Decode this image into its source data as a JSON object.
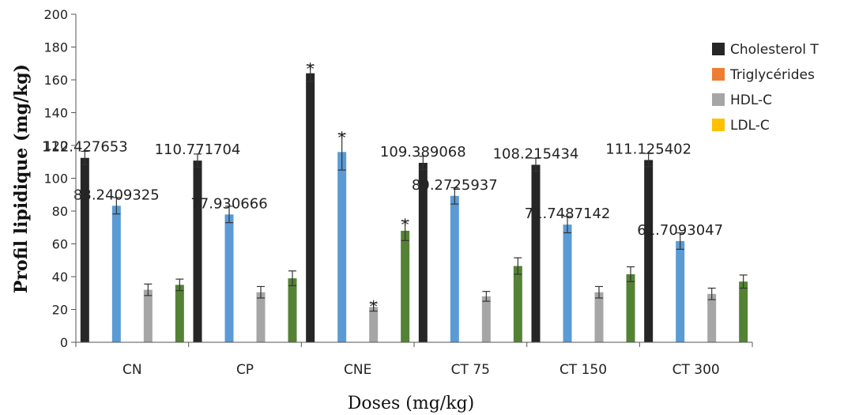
{
  "chart_data": {
    "type": "bar",
    "xlabel": "Doses (mg/kg)",
    "ylabel": "Profil lipidique (mg/kg)",
    "ylim": [
      0,
      200
    ],
    "yticks": [
      0,
      20,
      40,
      60,
      80,
      100,
      120,
      140,
      160,
      180,
      200
    ],
    "legend_position": "right",
    "categories": [
      "CN",
      "CP",
      "CNE",
      "CT 75",
      "CT 150",
      "CT 300"
    ],
    "series": [
      {
        "name": "Cholesterol T",
        "color": "#262626",
        "values": [
          112.427653,
          110.771704,
          164,
          109.389068,
          108.215434,
          111.125402
        ],
        "errors": [
          4,
          4,
          5,
          4,
          4,
          4
        ]
      },
      {
        "name": "Triglycérides",
        "color": "#5b9bd5",
        "values": [
          83.2409325,
          77.930666,
          116,
          89.2725937,
          71.7487142,
          61.7093047
        ],
        "errors": [
          5,
          5,
          11,
          5,
          5,
          5
        ]
      },
      {
        "name": "HDL-C",
        "color": "#a6a6a6",
        "values": [
          32,
          30.5,
          21.5,
          28,
          30.5,
          29.5
        ],
        "errors": [
          3.5,
          3.5,
          2.5,
          3,
          3.5,
          3.5
        ]
      },
      {
        "name": "LDL-C",
        "color": "#548235",
        "values": [
          35,
          39,
          68,
          46.5,
          41.5,
          37
        ],
        "errors": [
          3.5,
          4.5,
          6,
          5,
          4.5,
          4
        ]
      }
    ],
    "data_labels": [
      {
        "category": 0,
        "series": 0,
        "text": "112.427653"
      },
      {
        "category": 0,
        "series": 1,
        "text": "83.2409325"
      },
      {
        "category": 1,
        "series": 0,
        "text": "110.771704"
      },
      {
        "category": 1,
        "series": 1,
        "text": "77.930666"
      },
      {
        "category": 3,
        "series": 0,
        "text": "109.389068"
      },
      {
        "category": 3,
        "series": 1,
        "text": "89.2725937"
      },
      {
        "category": 4,
        "series": 0,
        "text": "108.215434"
      },
      {
        "category": 4,
        "series": 1,
        "text": "71.7487142"
      },
      {
        "category": 5,
        "series": 0,
        "text": "111.125402"
      },
      {
        "category": 5,
        "series": 1,
        "text": "61.7093047"
      }
    ],
    "significance": [
      {
        "category": 2,
        "series": 0,
        "text": "*"
      },
      {
        "category": 2,
        "series": 1,
        "text": "*"
      },
      {
        "category": 2,
        "series": 2,
        "text": "*"
      },
      {
        "category": 2,
        "series": 3,
        "text": "*"
      }
    ],
    "legend": [
      {
        "label": "Cholesterol T",
        "color": "#262626"
      },
      {
        "label": "Triglycérides",
        "color": "#ed7d31"
      },
      {
        "label": "HDL-C",
        "color": "#a6a6a6"
      },
      {
        "label": "LDL-C",
        "color": "#ffc000"
      }
    ]
  }
}
